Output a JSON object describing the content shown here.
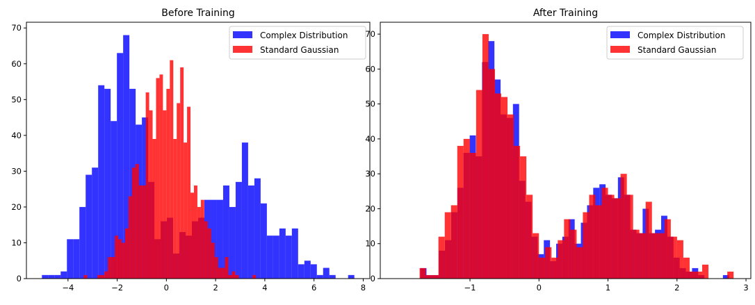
{
  "chart_data": [
    {
      "type": "bar",
      "title": "Before Training",
      "xlim": [
        -5.69,
        8.27
      ],
      "ylim": [
        0,
        71.6
      ],
      "xticks": [
        -4,
        -2,
        0,
        2,
        4,
        6,
        8
      ],
      "yticks": [
        0,
        10,
        20,
        30,
        40,
        50,
        60,
        70
      ],
      "grid": false,
      "legend_position": "top-right",
      "series": [
        {
          "name": "Complex Distribution",
          "color": "#0000ff",
          "opacity": 0.8,
          "bin_start": -5.06,
          "bin_width": 0.254,
          "values": [
            1,
            1,
            1,
            2,
            11,
            11,
            20,
            29,
            31,
            54,
            53,
            44,
            63,
            68,
            53,
            43,
            45,
            27,
            11,
            16,
            17,
            7,
            13,
            12,
            16,
            17,
            22,
            22,
            22,
            26,
            20,
            27,
            38,
            26,
            28,
            21,
            12,
            12,
            14,
            12,
            14,
            4,
            5,
            4,
            1,
            3,
            1,
            0,
            0,
            1
          ]
        },
        {
          "name": "Standard Gaussian",
          "color": "#ff0000",
          "opacity": 0.8,
          "bin_start": -3.36,
          "bin_width": 0.14,
          "values": [
            1,
            0,
            0,
            0,
            1,
            1,
            2,
            6,
            6,
            12,
            11,
            10,
            14,
            23,
            31,
            32,
            26,
            26,
            52,
            47,
            39,
            56,
            57,
            47,
            53,
            61,
            39,
            49,
            59,
            38,
            48,
            24,
            26,
            20,
            22,
            16,
            14,
            10,
            6,
            3,
            3,
            6,
            1,
            2,
            1,
            0,
            0,
            0,
            0,
            1
          ]
        }
      ]
    },
    {
      "type": "bar",
      "title": "After Training",
      "xlim": [
        -2.3,
        3.07
      ],
      "ylim": [
        0,
        73.4
      ],
      "xticks": [
        -1,
        0,
        1,
        2,
        3
      ],
      "yticks": [
        0,
        10,
        20,
        30,
        40,
        50,
        60,
        70
      ],
      "grid": false,
      "legend_position": "top-right",
      "series": [
        {
          "name": "Complex Distribution",
          "color": "#0000ff",
          "opacity": 0.8,
          "bin_start": -1.72,
          "bin_width": 0.0895,
          "values": [
            3,
            1,
            1,
            8,
            11,
            19,
            26,
            36,
            41,
            35,
            62,
            68,
            57,
            47,
            46,
            50,
            28,
            22,
            12,
            7,
            11,
            5,
            10,
            12,
            17,
            10,
            16,
            21,
            26,
            27,
            24,
            23,
            29,
            24,
            14,
            13,
            20,
            13,
            14,
            18,
            12,
            6,
            3,
            2,
            3,
            1,
            0,
            0,
            0,
            1
          ]
        },
        {
          "name": "Standard Gaussian",
          "color": "#ff0000",
          "opacity": 0.8,
          "bin_start": -1.73,
          "bin_width": 0.091,
          "values": [
            3,
            1,
            1,
            12,
            19,
            21,
            38,
            40,
            36,
            54,
            70,
            60,
            53,
            52,
            47,
            38,
            35,
            24,
            13,
            6,
            9,
            6,
            11,
            17,
            14,
            9,
            19,
            24,
            21,
            26,
            24,
            23,
            30,
            24,
            14,
            13,
            22,
            13,
            13,
            17,
            12,
            11,
            6,
            2,
            2,
            4,
            0,
            0,
            0,
            2
          ]
        }
      ]
    }
  ]
}
